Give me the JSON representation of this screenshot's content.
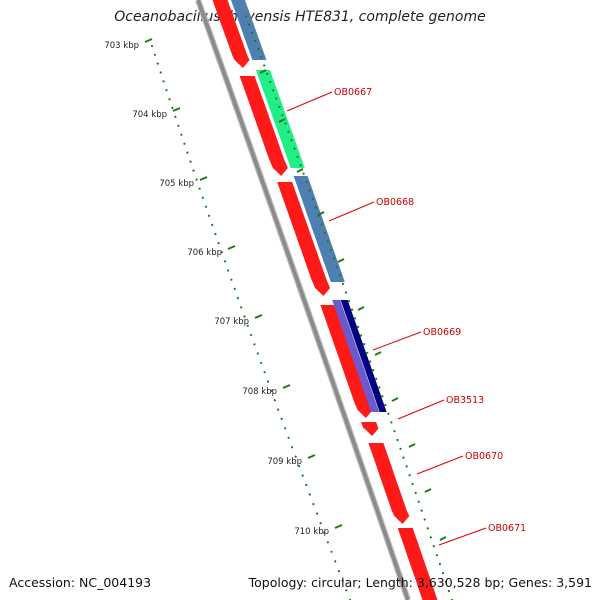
{
  "title": "Oceanobacillus iheyensis HTE831, complete genome",
  "footer": {
    "accession": "Accession: NC_004193",
    "summary": "Topology: circular; Length: 3,630,528 bp; Genes: 3,591"
  },
  "colors": {
    "backbone": "#8a8a8a",
    "forward_cds": "#ff1a1a",
    "ruler": "#1a7a1a",
    "label_line": "#e00000",
    "steelblue_track": "#4f7fb0",
    "green_track": "#22ee88",
    "navy_track": "#000080",
    "slate_track": "#6a5acd"
  },
  "ruler_labels": [
    "703 kbp",
    "704 kbp",
    "705 kbp",
    "706 kbp",
    "707 kbp",
    "708 kbp",
    "709 kbp",
    "710 kbp"
  ],
  "gene_labels": [
    "OB0667",
    "OB0668",
    "OB0669",
    "OB3513",
    "OB0670",
    "OB0671"
  ]
}
